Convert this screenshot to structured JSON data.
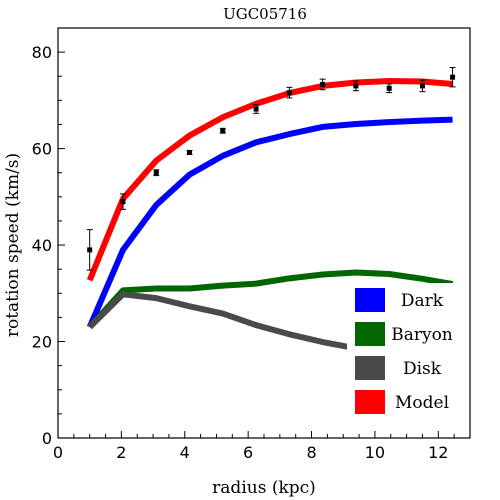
{
  "chart_data": {
    "type": "line",
    "title": "UGC05716",
    "xlabel": "radius (kpc)",
    "ylabel": "rotation speed (km/s)",
    "xlim": [
      0,
      13
    ],
    "ylim": [
      0,
      85
    ],
    "xticks": [
      0,
      2,
      4,
      6,
      8,
      10,
      12
    ],
    "yticks": [
      0,
      20,
      40,
      60,
      80
    ],
    "grid": false,
    "legend_position": "bottom-right",
    "series": [
      {
        "name": "Dark",
        "color": "#0000ff",
        "x": [
          1.0,
          2.05,
          3.1,
          4.15,
          5.2,
          6.25,
          7.3,
          8.35,
          9.4,
          10.45,
          11.5,
          12.45
        ],
        "y": [
          23.0,
          39.0,
          48.3,
          54.6,
          58.5,
          61.3,
          63.0,
          64.5,
          65.1,
          65.5,
          65.8,
          66.0
        ]
      },
      {
        "name": "Baryon",
        "color": "#006600",
        "x": [
          1.0,
          2.05,
          3.1,
          4.15,
          5.2,
          6.25,
          7.3,
          8.35,
          9.4,
          10.45,
          11.5,
          12.45
        ],
        "y": [
          23.0,
          30.6,
          31.0,
          31.0,
          31.6,
          32.0,
          33.1,
          33.9,
          34.3,
          34.0,
          33.0,
          31.9
        ]
      },
      {
        "name": "Disk",
        "color": "#4a4a4a",
        "x": [
          1.0,
          2.05,
          3.1,
          4.15,
          5.2,
          6.25,
          7.3,
          8.35,
          9.4,
          10.45,
          11.5,
          12.45
        ],
        "y": [
          23.0,
          29.8,
          29.0,
          27.3,
          25.8,
          23.4,
          21.5,
          19.9,
          18.6,
          17.5,
          16.6,
          15.8
        ]
      },
      {
        "name": "Model",
        "color": "#ff0000",
        "x": [
          1.0,
          2.05,
          3.1,
          4.15,
          5.2,
          6.25,
          7.3,
          8.35,
          9.4,
          10.45,
          11.5,
          12.45
        ],
        "y": [
          32.7,
          49.6,
          57.5,
          62.7,
          66.5,
          69.3,
          71.5,
          73.0,
          73.7,
          74.0,
          73.9,
          73.4
        ]
      }
    ],
    "observed": {
      "color": "#000000",
      "x": [
        1.0,
        2.05,
        3.1,
        4.15,
        5.2,
        6.25,
        7.3,
        8.35,
        9.4,
        10.45,
        11.5,
        12.45
      ],
      "y": [
        39.0,
        49.0,
        55.0,
        59.2,
        63.7,
        68.2,
        71.6,
        73.3,
        73.0,
        72.5,
        73.0,
        74.8
      ],
      "err": [
        4.2,
        1.6,
        0.6,
        0.4,
        0.5,
        0.9,
        1.1,
        1.1,
        1.0,
        0.9,
        1.2,
        2.0
      ]
    }
  }
}
